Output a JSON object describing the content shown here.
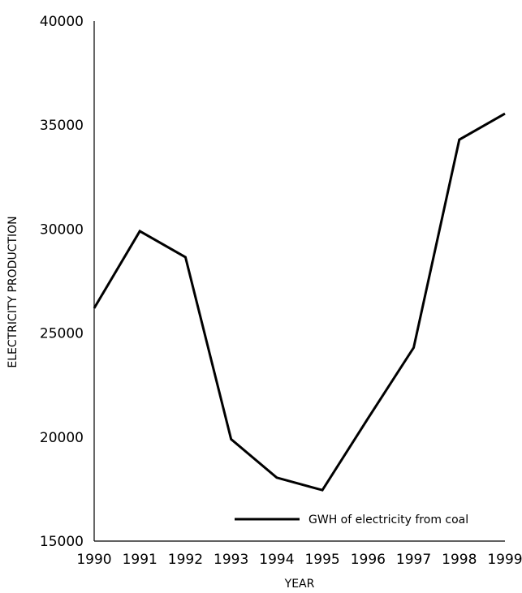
{
  "chart_data": {
    "type": "line",
    "xlabel": "YEAR",
    "ylabel": "ELECTRICITY PRODUCTION",
    "x": [
      "1990",
      "1991",
      "1992",
      "1993",
      "1994",
      "1995",
      "1996",
      "1997",
      "1998",
      "1999"
    ],
    "xlim": [
      1990,
      1999
    ],
    "ylim": [
      15000,
      40000
    ],
    "yticks": [
      "15000",
      "20000",
      "25000",
      "30000",
      "35000",
      "40000"
    ],
    "grid": false,
    "legend_position": "bottom-right",
    "series": [
      {
        "name": "GWH of electricity from coal",
        "color": "#000000",
        "values": [
          26200,
          29900,
          28650,
          19900,
          18050,
          17450,
          20900,
          24300,
          34300,
          35550
        ]
      }
    ]
  }
}
